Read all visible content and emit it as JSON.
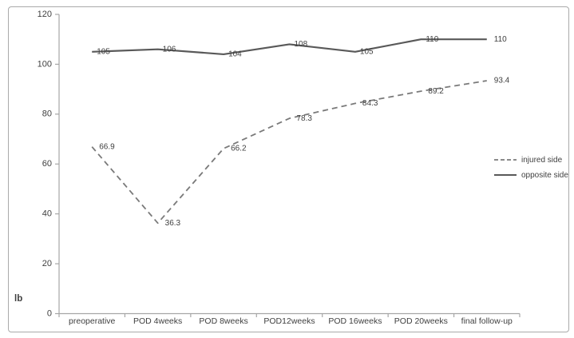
{
  "figure": {
    "background": "#ffffff",
    "border_color": "#aaaaaa"
  },
  "chart_data": {
    "type": "line",
    "title": "",
    "xlabel": "",
    "ylabel": "lb",
    "ylim": [
      0,
      120
    ],
    "yticks": [
      0,
      20,
      40,
      60,
      80,
      100,
      120
    ],
    "grid": false,
    "data_labels": true,
    "legend_position": "right",
    "axis_color": "#a6a6a6",
    "label_color": "#404040",
    "categories": [
      "preoperative",
      "POD 4weeks",
      "POD 8weeks",
      "POD12weeks",
      "POD 16weeks",
      "POD 20weeks",
      "final follow-up"
    ],
    "series": [
      {
        "name": "injured side",
        "style": "dashed",
        "color": "#7a7a7a",
        "values": [
          66.9,
          36.3,
          66.2,
          78.3,
          84.3,
          89.2,
          93.4
        ]
      },
      {
        "name": "opposite side",
        "style": "solid",
        "color": "#595959",
        "values": [
          105,
          106,
          104,
          108,
          105,
          110,
          110
        ]
      }
    ]
  }
}
